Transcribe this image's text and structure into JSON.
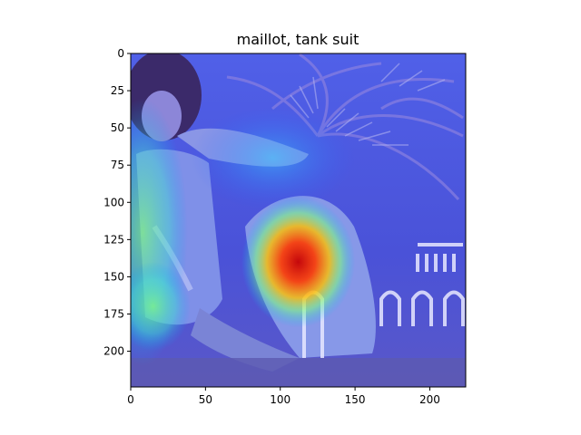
{
  "figure": {
    "title": "maillot, tank suit",
    "image_kind": "heatmap-overlay-photo",
    "colormap": "jet",
    "description_tags": [
      "woman-photo",
      "palm-fronds",
      "white-fence",
      "attention-heatmap"
    ]
  },
  "chart_data": {
    "type": "heatmap",
    "title": "maillot, tank suit",
    "xlabel": "",
    "ylabel": "",
    "xlim": [
      0,
      224
    ],
    "ylim": [
      224,
      0
    ],
    "x_ticks": [
      0,
      50,
      100,
      150,
      200
    ],
    "y_ticks": [
      0,
      25,
      50,
      75,
      100,
      125,
      150,
      175,
      200
    ],
    "grid": false,
    "colorbar": false,
    "hotspots": [
      {
        "x": 112,
        "y": 140,
        "rx": 38,
        "ry": 44,
        "level": 1.0
      },
      {
        "x": 8,
        "y": 120,
        "rx": 30,
        "ry": 90,
        "level": 0.45
      },
      {
        "x": 15,
        "y": 170,
        "rx": 25,
        "ry": 30,
        "level": 0.55
      },
      {
        "x": 95,
        "y": 70,
        "rx": 55,
        "ry": 35,
        "level": 0.3
      }
    ]
  }
}
